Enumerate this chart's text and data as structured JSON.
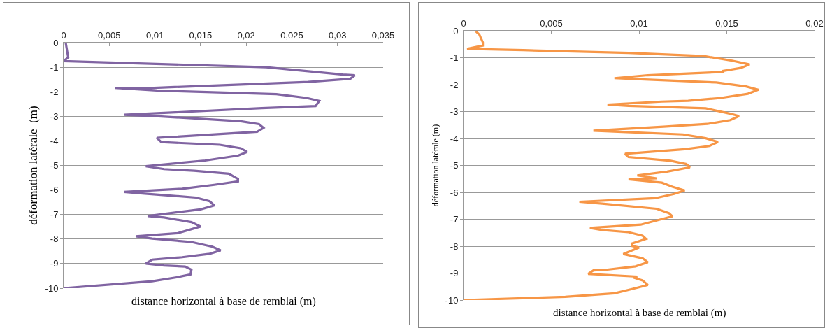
{
  "chart_data": [
    {
      "type": "line",
      "xlabel": "distance horizontal à base de remblai (m)",
      "ylabel": "déformation latérale  (m)",
      "xlim": [
        0,
        0.035
      ],
      "xticks": [
        0,
        {
          "value": 0.005,
          "label": "0,005"
        },
        {
          "value": 0.01,
          "label": "0,01"
        },
        {
          "value": 0.015,
          "label": "0,015"
        },
        {
          "value": 0.02,
          "label": "0,02"
        },
        {
          "value": 0.025,
          "label": "0,025"
        },
        {
          "value": 0.03,
          "label": "0,03"
        },
        {
          "value": 0.035,
          "label": "0,035"
        }
      ],
      "ylim": [
        -10,
        0
      ],
      "yticks": [
        -10,
        -9,
        -8,
        -7,
        -6,
        -5,
        -4,
        -3,
        -2,
        -1,
        0
      ],
      "grid": "y",
      "marker": "none",
      "line_style": "solid",
      "series": [
        {
          "color": "#8064a2",
          "x": [
            0.00023,
            0.0005,
            0,
            0.0222,
            0.0306,
            0.0319,
            0.0314,
            0.0268,
            0.0099,
            0.0056,
            0.0102,
            0.0233,
            0.0266,
            0.028,
            0.0276,
            0.0217,
            0.0066,
            0.0104,
            0.0194,
            0.0214,
            0.0219,
            0.0212,
            0.0102,
            0.0107,
            0.0171,
            0.0194,
            0.0201,
            0.0191,
            0.0155,
            0.009,
            0.011,
            0.0143,
            0.0181,
            0.0191,
            0.0191,
            0.0165,
            0.013,
            0.0066,
            0.0089,
            0.0145,
            0.016,
            0.0165,
            0.015,
            0.0092,
            0.011,
            0.014,
            0.015,
            0.0125,
            0.0079,
            0.0097,
            0.014,
            0.0163,
            0.0172,
            0.016,
            0.013,
            0.0097,
            0.009,
            0.011,
            0.0133,
            0.014,
            0.0139,
            0.0125,
            0.0097,
            0
          ],
          "values": [
            0,
            -0.6,
            -0.75,
            -1.0,
            -1.3,
            -1.33,
            -1.47,
            -1.6,
            -1.84,
            -1.84,
            -1.95,
            -2.1,
            -2.25,
            -2.37,
            -2.58,
            -2.67,
            -2.94,
            -3.0,
            -3.2,
            -3.32,
            -3.47,
            -3.63,
            -3.88,
            -4.05,
            -4.16,
            -4.3,
            -4.45,
            -4.6,
            -4.8,
            -5.03,
            -5.15,
            -5.22,
            -5.34,
            -5.55,
            -5.65,
            -5.79,
            -5.95,
            -6.08,
            -6.15,
            -6.31,
            -6.46,
            -6.63,
            -6.79,
            -7.06,
            -7.12,
            -7.31,
            -7.49,
            -7.76,
            -7.89,
            -7.98,
            -8.12,
            -8.31,
            -8.46,
            -8.6,
            -8.74,
            -8.84,
            -9.0,
            -9.08,
            -9.12,
            -9.25,
            -9.44,
            -9.55,
            -9.72,
            -10
          ]
        }
      ]
    },
    {
      "type": "line",
      "xlabel": "distance horizontal à base de remblai (m)",
      "ylabel": "déformation latérale (m)",
      "xlim": [
        0,
        0.02
      ],
      "xticks": [
        0,
        {
          "value": 0.005,
          "label": "0,005"
        },
        {
          "value": 0.01,
          "label": "0,01"
        },
        {
          "value": 0.015,
          "label": "0,015"
        },
        {
          "value": 0.02,
          "label": "0,02"
        }
      ],
      "ylim": [
        -10,
        0
      ],
      "yticks": [
        -10,
        -9,
        -8,
        -7,
        -6,
        -5,
        -4,
        -3,
        -2,
        -1,
        0
      ],
      "grid": "y",
      "marker": "none",
      "line_style": "solid",
      "series": [
        {
          "color": "#f79646",
          "x": [
            0.0007,
            0.0009,
            0.0011,
            0.0011,
            0.0002,
            0.0034,
            0.0094,
            0.0137,
            0.0153,
            0.0163,
            0.0158,
            0.0148,
            0.0148,
            0.0105,
            0.0086,
            0.0101,
            0.0144,
            0.0161,
            0.0168,
            0.0162,
            0.0146,
            0.0128,
            0.0113,
            0.0082,
            0.0094,
            0.0138,
            0.0152,
            0.0157,
            0.0152,
            0.0139,
            0.0114,
            0.0074,
            0.0088,
            0.0125,
            0.0138,
            0.0145,
            0.014,
            0.0126,
            0.0092,
            0.0094,
            0.0118,
            0.0127,
            0.0129,
            0.0116,
            0.0099,
            0.011,
            0.0094,
            0.0113,
            0.0119,
            0.0126,
            0.012,
            0.0109,
            0.0066,
            0.0079,
            0.011,
            0.0117,
            0.0119,
            0.0101,
            0.0072,
            0.0079,
            0.0094,
            0.0102,
            0.0104,
            0.0096,
            0.0096,
            0.01,
            0.0091,
            0.0102,
            0.0105,
            0.0098,
            0.0082,
            0.0074,
            0.0071,
            0.0099,
            0.0097,
            0.0102,
            0.0105,
            0.0096,
            0.0086,
            0.0058,
            0
          ],
          "values": [
            -0.02,
            -0.14,
            -0.43,
            -0.55,
            -0.67,
            -0.72,
            -0.82,
            -0.94,
            -1.11,
            -1.25,
            -1.38,
            -1.49,
            -1.53,
            -1.65,
            -1.76,
            -1.8,
            -1.92,
            -2.07,
            -2.19,
            -2.34,
            -2.5,
            -2.6,
            -2.63,
            -2.74,
            -2.79,
            -2.88,
            -3.08,
            -3.17,
            -3.32,
            -3.46,
            -3.56,
            -3.71,
            -3.75,
            -3.85,
            -3.99,
            -4.13,
            -4.28,
            -4.4,
            -4.57,
            -4.69,
            -4.83,
            -4.95,
            -5.07,
            -5.23,
            -5.37,
            -5.48,
            -5.52,
            -5.64,
            -5.79,
            -5.93,
            -6.06,
            -6.22,
            -6.35,
            -6.42,
            -6.61,
            -6.77,
            -6.89,
            -7.2,
            -7.32,
            -7.4,
            -7.48,
            -7.61,
            -7.73,
            -7.9,
            -7.99,
            -8.05,
            -8.29,
            -8.45,
            -8.6,
            -8.75,
            -8.87,
            -8.9,
            -9.03,
            -9.13,
            -9.17,
            -9.27,
            -9.44,
            -9.59,
            -9.75,
            -9.88,
            -10
          ]
        }
      ]
    }
  ]
}
